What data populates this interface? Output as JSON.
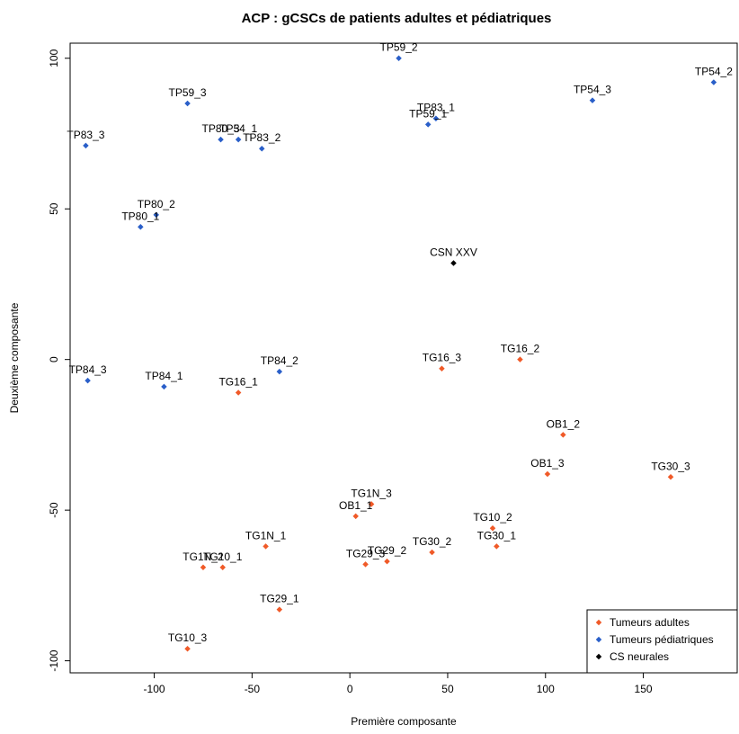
{
  "chart_data": {
    "type": "scatter",
    "title": "ACP : gCSCs de patients adultes et pédiatriques",
    "xlabel": "Première composante",
    "ylabel": "Deuxième composante",
    "xlim": [
      -143,
      198
    ],
    "ylim": [
      -104,
      105
    ],
    "xticks": [
      -100,
      -50,
      0,
      50,
      100,
      150
    ],
    "yticks": [
      -100,
      -50,
      0,
      50,
      100
    ],
    "grid": false,
    "legend_position": "bottom-right",
    "series": [
      {
        "name": "Tumeurs adultes",
        "color": "#f05a28",
        "points": [
          {
            "label": "TG16_1",
            "x": -57,
            "y": -11
          },
          {
            "label": "TG16_2",
            "x": 87,
            "y": 0
          },
          {
            "label": "TG16_3",
            "x": 47,
            "y": -3
          },
          {
            "label": "OB1_2",
            "x": 109,
            "y": -25
          },
          {
            "label": "OB1_3",
            "x": 101,
            "y": -38
          },
          {
            "label": "TG30_3",
            "x": 164,
            "y": -39
          },
          {
            "label": "TG1N_3",
            "x": 11,
            "y": -48
          },
          {
            "label": "OB1_1",
            "x": 3,
            "y": -52
          },
          {
            "label": "TG10_2",
            "x": 73,
            "y": -56
          },
          {
            "label": "TG30_1",
            "x": 75,
            "y": -62
          },
          {
            "label": "TG1N_1",
            "x": -43,
            "y": -62
          },
          {
            "label": "TG30_2",
            "x": 42,
            "y": -64
          },
          {
            "label": "TG29_2",
            "x": 19,
            "y": -67
          },
          {
            "label": "TG29_3",
            "x": 8,
            "y": -68
          },
          {
            "label": "TG1N_2",
            "x": -75,
            "y": -69
          },
          {
            "label": "TG10_1",
            "x": -65,
            "y": -69
          },
          {
            "label": "TG29_1",
            "x": -36,
            "y": -83
          },
          {
            "label": "TG10_3",
            "x": -83,
            "y": -96
          }
        ]
      },
      {
        "name": "Tumeurs pédiatriques",
        "color": "#2a5fc9",
        "points": [
          {
            "label": "TP59_2",
            "x": 25,
            "y": 100
          },
          {
            "label": "TP54_2",
            "x": 186,
            "y": 92
          },
          {
            "label": "TP54_3",
            "x": 124,
            "y": 86
          },
          {
            "label": "TP59_3",
            "x": -83,
            "y": 85
          },
          {
            "label": "TP83_1",
            "x": 44,
            "y": 80
          },
          {
            "label": "TP59_1",
            "x": 40,
            "y": 78
          },
          {
            "label": "TP80_3",
            "x": -66,
            "y": 73
          },
          {
            "label": "TP54_1",
            "x": -57,
            "y": 73
          },
          {
            "label": "TP83_2",
            "x": -45,
            "y": 70
          },
          {
            "label": "TP83_3",
            "x": -135,
            "y": 71
          },
          {
            "label": "TP80_2",
            "x": -99,
            "y": 48
          },
          {
            "label": "TP80_1",
            "x": -107,
            "y": 44
          },
          {
            "label": "TP84_3",
            "x": -134,
            "y": -7
          },
          {
            "label": "TP84_1",
            "x": -95,
            "y": -9
          },
          {
            "label": "TP84_2",
            "x": -36,
            "y": -4
          }
        ]
      },
      {
        "name": "CS neurales",
        "color": "#000000",
        "points": [
          {
            "label": "CSN XXV",
            "x": 53,
            "y": 32
          }
        ]
      }
    ]
  }
}
